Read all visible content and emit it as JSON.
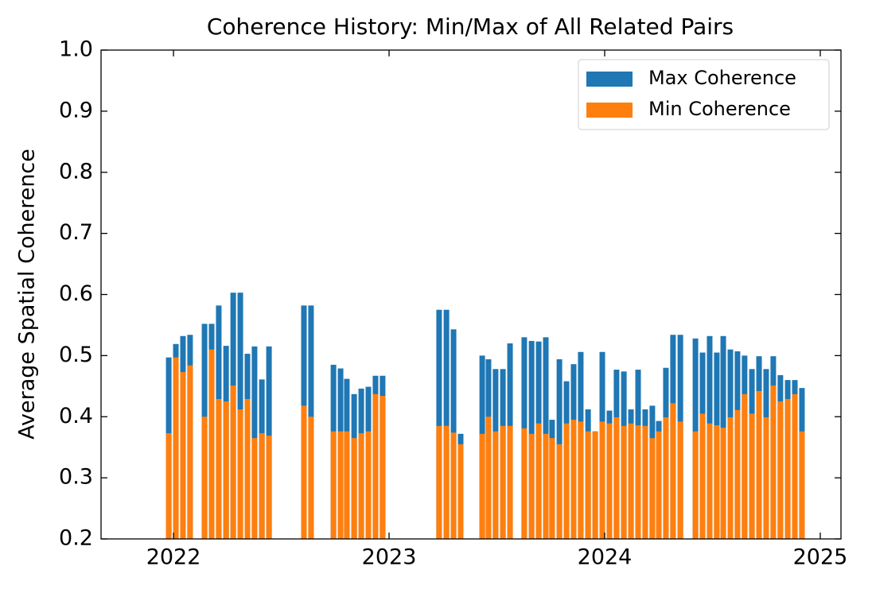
{
  "chart_data": {
    "type": "bar",
    "title": "Coherence History: Min/Max of All Related Pairs",
    "y_label": "Average Spatial Coherence",
    "x": [
      2021.978,
      2022.011,
      2022.044,
      2022.077,
      2022.144,
      2022.177,
      2022.21,
      2022.244,
      2022.277,
      2022.31,
      2022.343,
      2022.376,
      2022.41,
      2022.443,
      2022.605,
      2022.638,
      2022.742,
      2022.775,
      2022.804,
      2022.838,
      2022.871,
      2022.904,
      2022.937,
      2022.97,
      2023.232,
      2023.266,
      2023.299,
      2023.332,
      2023.432,
      2023.461,
      2023.494,
      2023.528,
      2023.561,
      2023.627,
      2023.661,
      2023.694,
      2023.727,
      2023.756,
      2023.79,
      2023.823,
      2023.856,
      2023.889,
      2023.923,
      2023.956,
      2023.989,
      2024.022,
      2024.055,
      2024.089,
      2024.122,
      2024.155,
      2024.188,
      2024.221,
      2024.251,
      2024.284,
      2024.317,
      2024.351,
      2024.421,
      2024.454,
      2024.487,
      2024.52,
      2024.55,
      2024.583,
      2024.616,
      2024.649,
      2024.683,
      2024.716,
      2024.749,
      2024.782,
      2024.815,
      2024.849,
      2024.882,
      2024.915
    ],
    "series": [
      {
        "name": "Max Coherence",
        "color": "#1f77b4",
        "values": [
          0.497,
          0.519,
          0.532,
          0.534,
          0.552,
          0.552,
          0.582,
          0.516,
          0.603,
          0.603,
          0.503,
          0.515,
          0.461,
          0.515,
          0.582,
          0.582,
          0.485,
          0.479,
          0.462,
          0.437,
          0.446,
          0.449,
          0.467,
          0.467,
          0.575,
          0.575,
          0.543,
          0.372,
          0.5,
          0.494,
          0.478,
          0.478,
          0.52,
          0.53,
          0.524,
          0.523,
          0.53,
          0.395,
          0.494,
          0.458,
          0.486,
          0.506,
          0.412,
          0.376,
          0.506,
          0.41,
          0.477,
          0.474,
          0.412,
          0.477,
          0.412,
          0.418,
          0.393,
          0.48,
          0.534,
          0.534,
          0.528,
          0.505,
          0.532,
          0.505,
          0.532,
          0.51,
          0.507,
          0.5,
          0.478,
          0.499,
          0.478,
          0.499,
          0.468,
          0.46,
          0.46,
          0.447
        ]
      },
      {
        "name": "Min Coherence",
        "color": "#ff7f0e",
        "values": [
          0.373,
          0.497,
          0.473,
          0.484,
          0.4,
          0.51,
          0.429,
          0.425,
          0.451,
          0.412,
          0.429,
          0.365,
          0.373,
          0.369,
          0.418,
          0.4,
          0.376,
          0.376,
          0.376,
          0.365,
          0.373,
          0.376,
          0.437,
          0.434,
          0.385,
          0.385,
          0.374,
          0.355,
          0.372,
          0.4,
          0.376,
          0.385,
          0.385,
          0.381,
          0.372,
          0.389,
          0.372,
          0.365,
          0.355,
          0.389,
          0.395,
          0.392,
          0.376,
          0.376,
          0.392,
          0.389,
          0.399,
          0.385,
          0.389,
          0.386,
          0.385,
          0.365,
          0.376,
          0.399,
          0.422,
          0.392,
          0.376,
          0.405,
          0.389,
          0.386,
          0.382,
          0.399,
          0.411,
          0.437,
          0.405,
          0.442,
          0.399,
          0.451,
          0.425,
          0.429,
          0.437,
          0.376
        ]
      }
    ],
    "xlim": [
      2021.664,
      2025.096
    ],
    "xticks": [
      2022,
      2023,
      2024,
      2025
    ],
    "ylim": [
      0.2,
      1.0
    ],
    "yticks": [
      0.2,
      0.3,
      0.4,
      0.5,
      0.6,
      0.7,
      0.8,
      0.9,
      {
        "value": 1.0,
        "label": "1.0"
      }
    ],
    "legend": "upper right"
  }
}
